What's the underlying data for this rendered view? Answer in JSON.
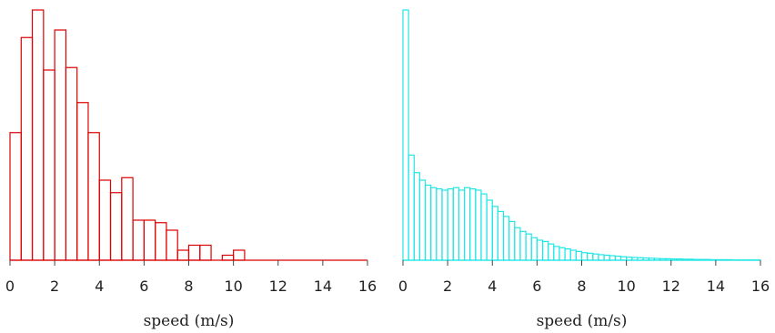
{
  "chart_data": [
    {
      "type": "bar",
      "histogram": true,
      "color": "#dd0000",
      "xlabel": "speed (m/s)",
      "ylabel": "",
      "xlim": [
        0,
        16
      ],
      "xticks": [
        0,
        2,
        4,
        6,
        8,
        10,
        12,
        14,
        16
      ],
      "tick_labels": [
        "0",
        "2",
        "4",
        "6",
        "8",
        "10",
        "12",
        "14",
        "16"
      ],
      "bin_width": 0.5,
      "bin_start": 0,
      "values": [
        0.51,
        0.89,
        1.0,
        0.76,
        0.92,
        0.77,
        0.63,
        0.51,
        0.32,
        0.27,
        0.33,
        0.16,
        0.16,
        0.15,
        0.12,
        0.04,
        0.06,
        0.06,
        0.0,
        0.02,
        0.04
      ],
      "ylim": [
        0,
        1.0
      ]
    },
    {
      "type": "bar",
      "histogram": true,
      "color": "#22e6e6",
      "xlabel": "speed (m/s)",
      "ylabel": "",
      "xlim": [
        0,
        16
      ],
      "xticks": [
        0,
        2,
        4,
        6,
        8,
        10,
        12,
        14,
        16
      ],
      "tick_labels": [
        "0",
        "2",
        "4",
        "6",
        "8",
        "10",
        "12",
        "14",
        "16"
      ],
      "bin_width": 0.25,
      "bin_start": 0,
      "values": [
        1.0,
        0.42,
        0.35,
        0.32,
        0.3,
        0.29,
        0.285,
        0.28,
        0.285,
        0.29,
        0.28,
        0.29,
        0.285,
        0.28,
        0.265,
        0.24,
        0.215,
        0.195,
        0.175,
        0.155,
        0.13,
        0.115,
        0.105,
        0.09,
        0.08,
        0.075,
        0.065,
        0.055,
        0.05,
        0.045,
        0.04,
        0.035,
        0.03,
        0.028,
        0.025,
        0.022,
        0.02,
        0.018,
        0.016,
        0.014,
        0.012,
        0.011,
        0.01,
        0.009,
        0.008,
        0.007,
        0.006,
        0.006,
        0.005,
        0.005,
        0.004,
        0.004,
        0.003,
        0.003,
        0.003,
        0.002,
        0.002,
        0.002,
        0.002,
        0.001,
        0.001,
        0.001,
        0.001,
        0.001
      ],
      "ylim": [
        0,
        1.0
      ]
    }
  ]
}
